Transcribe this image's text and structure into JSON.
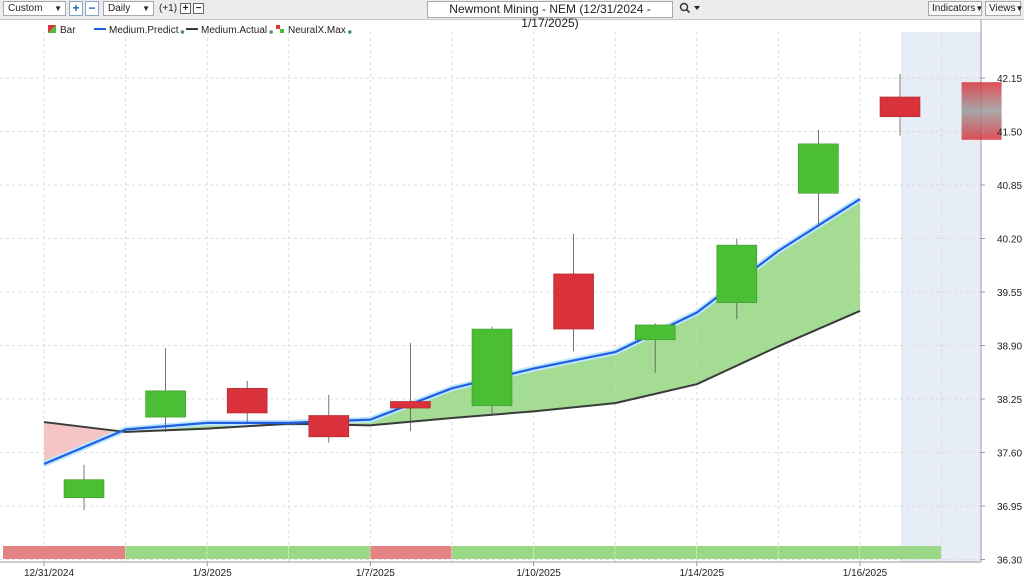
{
  "toolbar": {
    "range_select": "Custom",
    "zoom_in": "+",
    "zoom_out": "−",
    "period_select": "Daily",
    "offset_label": "(+1)",
    "offset_plus": "+",
    "offset_minus": "−",
    "chart_title": "Newmont Mining - NEM (12/31/2024 - 1/17/2025)",
    "indicators_label": "Indicators",
    "views_label": "Views"
  },
  "legend": [
    {
      "label": "Bar",
      "color": "#3cb52e"
    },
    {
      "label": "Medium.Predict",
      "color": "#1f5fe0"
    },
    {
      "label": "Medium.Actual",
      "color": "#3a3a3a"
    },
    {
      "label": "NeuralX.Max",
      "color": "#3cb52e"
    }
  ],
  "colors": {
    "up": "#4cbe35",
    "down": "#d9323a",
    "predict": "#1f5fe0",
    "actual": "#3a3a3a",
    "fill_up": "#a5dc94",
    "fill_down": "#f5c4c4",
    "strip_green": "#99d885",
    "strip_red": "#e48384",
    "forecast_bg": "#e6edf6",
    "grid": "#d6d6d6"
  },
  "chart_data": {
    "type": "candlestick",
    "ylim": [
      36.3,
      42.5
    ],
    "y_ticks": [
      "42.15",
      "41.50",
      "40.85",
      "40.20",
      "39.55",
      "38.90",
      "38.25",
      "37.60",
      "36.95",
      "36.30"
    ],
    "x_tick_labels": [
      {
        "day": 0,
        "label": "12/31/2024"
      },
      {
        "day": 2,
        "label": "1/3/2025"
      },
      {
        "day": 4,
        "label": "1/7/2025"
      },
      {
        "day": 6,
        "label": "1/10/2025"
      },
      {
        "day": 8,
        "label": "1/14/2025"
      },
      {
        "day": 10,
        "label": "1/16/2025"
      }
    ],
    "candles": [
      {
        "day": 0,
        "open": 37.05,
        "high": 37.45,
        "low": 36.9,
        "close": 37.27
      },
      {
        "day": 1,
        "open": 38.03,
        "high": 38.87,
        "low": 37.85,
        "close": 38.35
      },
      {
        "day": 2,
        "open": 38.38,
        "high": 38.47,
        "low": 37.97,
        "close": 38.08
      },
      {
        "day": 3,
        "open": 38.05,
        "high": 38.3,
        "low": 37.72,
        "close": 37.79
      },
      {
        "day": 4,
        "open": 38.22,
        "high": 38.93,
        "low": 37.86,
        "close": 38.14
      },
      {
        "day": 5,
        "open": 38.17,
        "high": 39.13,
        "low": 38.05,
        "close": 39.1
      },
      {
        "day": 6,
        "open": 39.77,
        "high": 40.26,
        "low": 38.83,
        "close": 39.1
      },
      {
        "day": 7,
        "open": 38.97,
        "high": 39.17,
        "low": 38.57,
        "close": 39.15
      },
      {
        "day": 8,
        "open": 39.42,
        "high": 40.2,
        "low": 39.22,
        "close": 40.12
      },
      {
        "day": 9,
        "open": 40.75,
        "high": 41.52,
        "low": 40.35,
        "close": 41.35
      },
      {
        "day": 10,
        "open": 41.92,
        "high": 42.2,
        "low": 41.45,
        "close": 41.68
      }
    ],
    "forecast_bar": {
      "day": 11,
      "top": 42.1,
      "bottom": 41.4
    },
    "series": [
      {
        "name": "Medium.Predict",
        "values": [
          37.46,
          37.88,
          37.96,
          37.96,
          38.0,
          38.38,
          38.62,
          38.82,
          39.3,
          40.05,
          40.68
        ]
      },
      {
        "name": "Medium.Actual",
        "values": [
          37.97,
          37.85,
          37.89,
          37.95,
          37.93,
          38.02,
          38.1,
          38.2,
          38.43,
          38.89,
          39.32
        ]
      }
    ],
    "neuralx_max_strip": [
      "down",
      "up",
      "up",
      "up",
      "down",
      "up",
      "up",
      "up",
      "up",
      "up",
      "up"
    ]
  }
}
